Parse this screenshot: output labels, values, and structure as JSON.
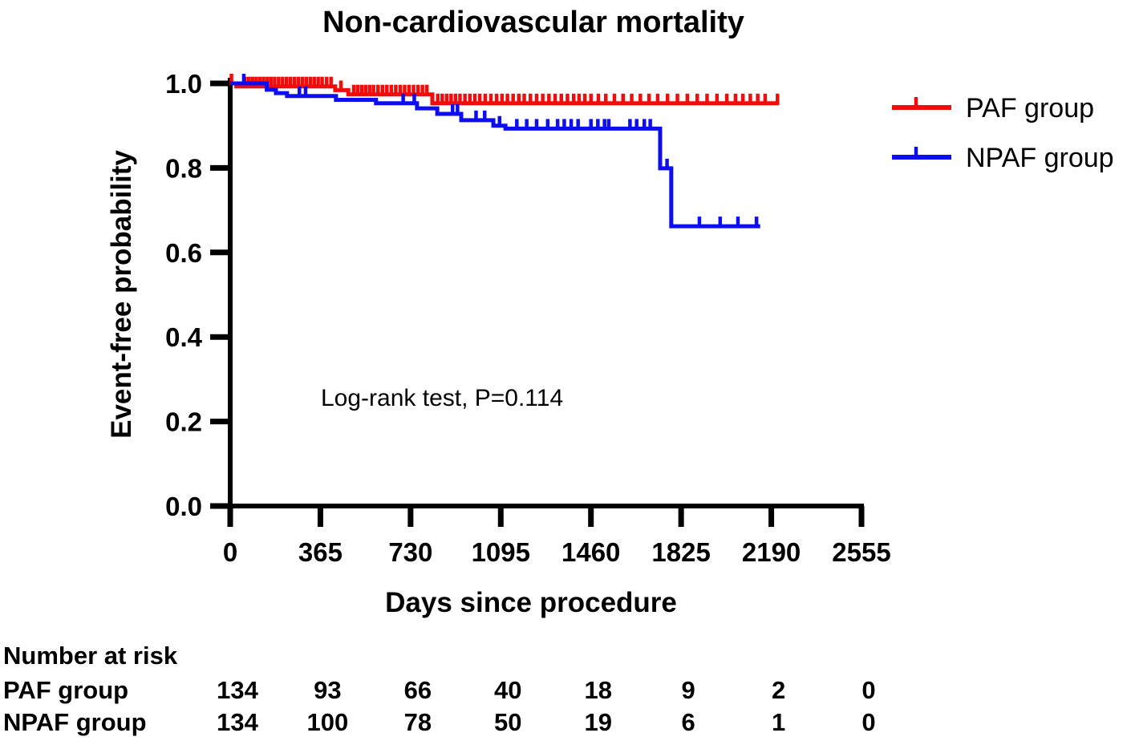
{
  "chart_data": {
    "type": "line",
    "subtype": "kaplan-meier-step",
    "title": "Non-cardiovascular mortality",
    "xlabel": "Days since procedure",
    "ylabel": "Event-free probability",
    "xlim": [
      0,
      2555
    ],
    "ylim": [
      0.0,
      1.0
    ],
    "x_ticks": [
      0,
      365,
      730,
      1095,
      1460,
      1825,
      2190,
      2555
    ],
    "y_ticks": [
      0.0,
      0.2,
      0.4,
      0.6,
      0.8,
      1.0
    ],
    "y_tick_labels": [
      "0.0",
      "0.2",
      "0.4",
      "0.6",
      "0.8",
      "1.0"
    ],
    "annotation": "Log-rank test, P=0.114",
    "legend_position": "right",
    "grid": false,
    "series": [
      {
        "name": "PAF group",
        "color": "#f20d0d",
        "start": [
          0,
          1.0
        ],
        "steps": [
          [
            25,
            0.993
          ],
          [
            425,
            0.984
          ],
          [
            478,
            0.974
          ],
          [
            818,
            0.953
          ]
        ],
        "end_day": 2220,
        "final_probability": 0.953,
        "censor_days": [
          5,
          60,
          75,
          90,
          105,
          120,
          135,
          150,
          165,
          180,
          196,
          212,
          228,
          244,
          260,
          276,
          292,
          308,
          324,
          340,
          356,
          372,
          390,
          408,
          448,
          500,
          516,
          532,
          548,
          564,
          580,
          598,
          616,
          634,
          652,
          670,
          688,
          706,
          724,
          742,
          760,
          778,
          796,
          840,
          858,
          876,
          894,
          912,
          930,
          950,
          970,
          990,
          1010,
          1032,
          1055,
          1078,
          1100,
          1122,
          1145,
          1168,
          1190,
          1215,
          1240,
          1265,
          1290,
          1315,
          1340,
          1365,
          1390,
          1412,
          1435,
          1460,
          1490,
          1520,
          1555,
          1590,
          1625,
          1660,
          1695,
          1730,
          1770,
          1810,
          1850,
          1890,
          1930,
          1970,
          2010,
          2045,
          2075,
          2105,
          2135,
          2165,
          2215
        ]
      },
      {
        "name": "NPAF group",
        "color": "#0d0df2",
        "start": [
          0,
          1.0
        ],
        "steps": [
          [
            148,
            0.985
          ],
          [
            185,
            0.977
          ],
          [
            230,
            0.97
          ],
          [
            428,
            0.961
          ],
          [
            590,
            0.953
          ],
          [
            756,
            0.941
          ],
          [
            838,
            0.928
          ],
          [
            935,
            0.913
          ],
          [
            1065,
            0.9
          ],
          [
            1114,
            0.893
          ],
          [
            1740,
            0.799
          ],
          [
            1785,
            0.662
          ]
        ],
        "end_day": 2145,
        "final_probability": 0.662,
        "censor_days": [
          55,
          280,
          305,
          700,
          745,
          900,
          920,
          995,
          1030,
          1090,
          1160,
          1200,
          1240,
          1285,
          1325,
          1352,
          1380,
          1408,
          1460,
          1488,
          1515,
          1532,
          1618,
          1645,
          1676,
          1700,
          1768,
          1899,
          1983,
          2055,
          2130
        ]
      }
    ]
  },
  "risk_table": {
    "header": "Number at risk",
    "columns_days": [
      0,
      365,
      730,
      1095,
      1460,
      1825,
      2190,
      2555
    ],
    "rows": [
      {
        "label": "PAF group",
        "values": [
          "134",
          "93",
          "66",
          "40",
          "18",
          "9",
          "2",
          "0"
        ]
      },
      {
        "label": "NPAF group",
        "values": [
          "134",
          "100",
          "78",
          "50",
          "19",
          "6",
          "1",
          "0"
        ]
      }
    ]
  }
}
